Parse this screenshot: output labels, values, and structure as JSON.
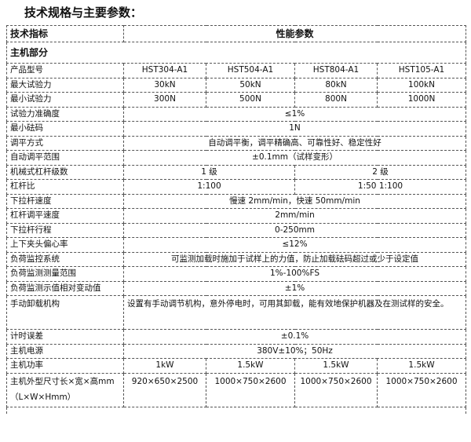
{
  "title": "技术规格与主要参数：",
  "header": {
    "col1": "技术指标",
    "col2": "性能参数"
  },
  "section": "主机部分",
  "rows": [
    {
      "label": "产品型号",
      "values": [
        "HST304-A1",
        "HST504-A1",
        "HST804-A1",
        "HST105-A1"
      ]
    },
    {
      "label": "最大试验力",
      "values": [
        "30kN",
        "50kN",
        "80kN",
        "100kN"
      ]
    },
    {
      "label": "最小试验力",
      "values": [
        "300N",
        "500N",
        "800N",
        "1000N"
      ]
    },
    {
      "label": "试验力准确度",
      "span": "≤1%"
    },
    {
      "label": "最小砝码",
      "span": "1N"
    },
    {
      "label": "调平方式",
      "span": "自动调平衡，调平精确高、可靠性好、稳定性好"
    },
    {
      "label": "自动调平范围",
      "span": "±0.1mm（试样变形）"
    },
    {
      "label": "机械式杠杆级数",
      "halves": [
        "1 级",
        "2 级"
      ]
    },
    {
      "label": "杠杆比",
      "halves": [
        "1:100",
        "1:50   1:100"
      ]
    },
    {
      "label": "下拉杆速度",
      "span": "慢速 2mm/min，快速 50mm/min"
    },
    {
      "label": "杠杆调平速度",
      "span": "2mm/min"
    },
    {
      "label": "下拉杆行程",
      "span": "0-250mm"
    },
    {
      "label": "上下夹头偏心率",
      "span": "≤12%"
    },
    {
      "label": "负荷监控系统",
      "span": "可监测加载时施加于试样上的力值，防止加载砝码超过或少于设定值"
    },
    {
      "label": "负荷监测测量范围",
      "span": "1%-100%FS"
    },
    {
      "label": "负荷监测示值相对变动值",
      "span": "±1%"
    },
    {
      "label": "手动卸载机构",
      "span": "设置有手动调节机构，意外停电时，可用其卸载，能有效地保护机器及在测试样的安全。"
    },
    {
      "label": "计时误差",
      "span": "±0.1%"
    },
    {
      "label": "主机电源",
      "span": "380V±10%；50Hz"
    },
    {
      "label": "主机功率",
      "values": [
        "1kW",
        "1.5kW",
        "1.5kW",
        "1.5kW"
      ]
    },
    {
      "label": "主机外型尺寸长×宽×高mm（L×W×Hmm）",
      "values": [
        "920×650×2500",
        "1000×750×2600",
        "1000×750×2600",
        "1000×750×2600"
      ]
    }
  ]
}
